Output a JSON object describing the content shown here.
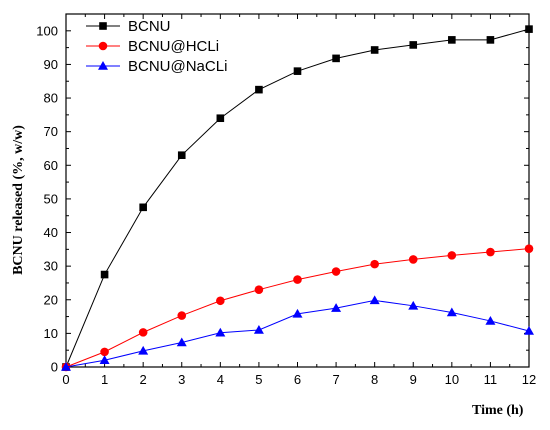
{
  "chart_data": {
    "type": "line",
    "title": "",
    "xlabel": "Time (h)",
    "ylabel": "BCNU released (%, w/w)",
    "x": [
      0,
      1,
      2,
      3,
      4,
      5,
      6,
      7,
      8,
      9,
      10,
      11,
      12
    ],
    "xlim": [
      0,
      12
    ],
    "ylim": [
      0,
      105
    ],
    "xticks": [
      "0",
      "1",
      "2",
      "3",
      "4",
      "5",
      "6",
      "7",
      "8",
      "9",
      "10",
      "11",
      "12"
    ],
    "yticks": [
      "0",
      "10",
      "20",
      "30",
      "40",
      "50",
      "60",
      "70",
      "80",
      "90",
      "100"
    ],
    "grid": false,
    "legend_position": "top-left",
    "series": [
      {
        "name": "BCNU",
        "marker": "square",
        "color": "#000000",
        "line_color": "#000000",
        "values": [
          0,
          27.5,
          47.5,
          63,
          74,
          82.5,
          88,
          91.8,
          94.3,
          95.8,
          97.3,
          97.3,
          100.5
        ]
      },
      {
        "name": "BCNU@HCLi",
        "marker": "circle",
        "color": "#ff0000",
        "line_color": "#ff0000",
        "values": [
          0,
          4.5,
          10.3,
          15.3,
          19.7,
          23,
          26,
          28.4,
          30.6,
          32,
          33.2,
          34.2,
          35.2
        ]
      },
      {
        "name": "BCNU@NaCLi",
        "marker": "triangle",
        "color": "#0000ff",
        "line_color": "#0000ff",
        "values": [
          0,
          2,
          4.8,
          7.3,
          10.2,
          11,
          15.8,
          17.5,
          19.8,
          18.2,
          16.2,
          13.7,
          10.7
        ]
      }
    ]
  }
}
